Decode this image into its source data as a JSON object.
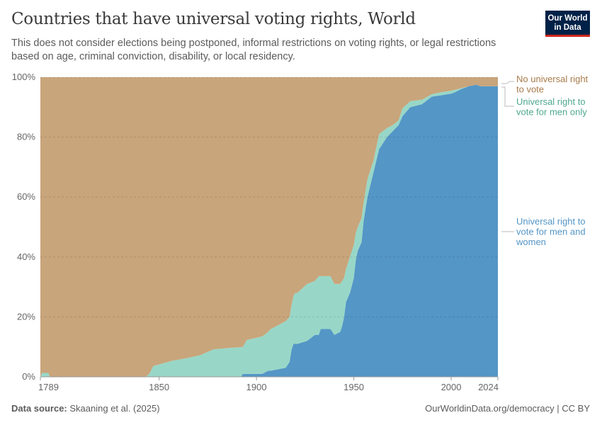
{
  "header": {
    "title": "Countries that have universal voting rights, World",
    "subtitle": "This does not consider elections being postponed, informal restrictions on voting rights, or legal restrictions based on age, criminal conviction, disability, or local residency.",
    "logo_text": "Our World in Data"
  },
  "footer": {
    "source_label": "Data source:",
    "source": "Skaaning et al. (2025)",
    "url": "OurWorldinData.org/democracy | CC BY"
  },
  "chart_data": {
    "type": "area",
    "stacked": true,
    "title": "Countries that have universal voting rights, World",
    "xlim": [
      1789,
      2024
    ],
    "ylim": [
      0,
      100
    ],
    "x_ticks": [
      "1789",
      "1850",
      "1900",
      "1950",
      "2000",
      "2024"
    ],
    "y_ticks": [
      "0%",
      "20%",
      "40%",
      "60%",
      "80%",
      "100%"
    ],
    "grid": "horizontal dashed",
    "legend": "right, inline labels",
    "x": [
      1789,
      1790,
      1791,
      1793,
      1794,
      1795,
      1843,
      1845,
      1847,
      1852,
      1857,
      1864,
      1871,
      1878,
      1887,
      1892,
      1893,
      1895,
      1903,
      1906,
      1907,
      1915,
      1917,
      1918,
      1919,
      1920,
      1921,
      1926,
      1930,
      1932,
      1933,
      1938,
      1940,
      1943,
      1944,
      1945,
      1946,
      1948,
      1950,
      1951,
      1952,
      1954,
      1955,
      1957,
      1960,
      1963,
      1967,
      1970,
      1973,
      1975,
      1979,
      1985,
      1990,
      1995,
      2000,
      2002,
      2005,
      2009,
      2013,
      2015,
      2024
    ],
    "series": [
      {
        "name": "Universal right to vote for men and women",
        "color": "#5496c6",
        "values": [
          0,
          0,
          0,
          0,
          0,
          0,
          0,
          0,
          0,
          0,
          0,
          0,
          0,
          0,
          0,
          0,
          1,
          1,
          1,
          2,
          2,
          3,
          5,
          9,
          11,
          11,
          11,
          12,
          14,
          14,
          16,
          16,
          14,
          15,
          17,
          20,
          25,
          28,
          33,
          39,
          42,
          45,
          52,
          60,
          68,
          76,
          80,
          82,
          84,
          87,
          90,
          91,
          93.5,
          94,
          94.5,
          95,
          96,
          97,
          97.5,
          97,
          97
        ]
      },
      {
        "name": "Universal right to vote for men only",
        "color": "#98d7c7",
        "label_color": "#4fa88f",
        "values": [
          0,
          1.3,
          1.3,
          1.3,
          0,
          0,
          0,
          1,
          3.6,
          4.5,
          5.4,
          6.2,
          7.2,
          9.2,
          9.7,
          9.9,
          9,
          11.3,
          12.5,
          13,
          13.8,
          15.6,
          15,
          15,
          16,
          17,
          17,
          19,
          18,
          19.6,
          17.6,
          17.6,
          17,
          16,
          15,
          13,
          11,
          12,
          11,
          9,
          8,
          8,
          6,
          6,
          4,
          5,
          3,
          2,
          1.6,
          2.6,
          2,
          1.5,
          0.8,
          1,
          1,
          0.8,
          0.3,
          0,
          0,
          0,
          0
        ]
      },
      {
        "name": "No universal right to vote",
        "color": "#c8a57b",
        "label_color": "#a87b4a",
        "values": [
          100,
          98.7,
          98.7,
          98.7,
          100,
          100,
          100,
          99,
          96.4,
          95.5,
          94.6,
          93.8,
          92.8,
          90.8,
          90.3,
          90.1,
          90,
          87.7,
          86.5,
          85,
          84.2,
          81.4,
          80,
          76,
          73,
          72,
          72,
          69,
          68,
          66.4,
          66.4,
          66.4,
          69,
          69,
          68,
          67,
          64,
          60,
          56,
          52,
          50,
          47,
          42,
          34,
          28,
          19,
          17,
          16,
          14.4,
          10.4,
          8,
          7.5,
          5.7,
          5,
          4.5,
          4.2,
          3.7,
          3,
          2.5,
          3,
          3
        ]
      }
    ],
    "legend_labels": {
      "no_right": [
        "No universal right",
        "to vote"
      ],
      "men_only": [
        "Universal right to",
        "vote for men only"
      ],
      "men_women": [
        "Universal right to",
        "vote for men and",
        "women"
      ]
    }
  }
}
